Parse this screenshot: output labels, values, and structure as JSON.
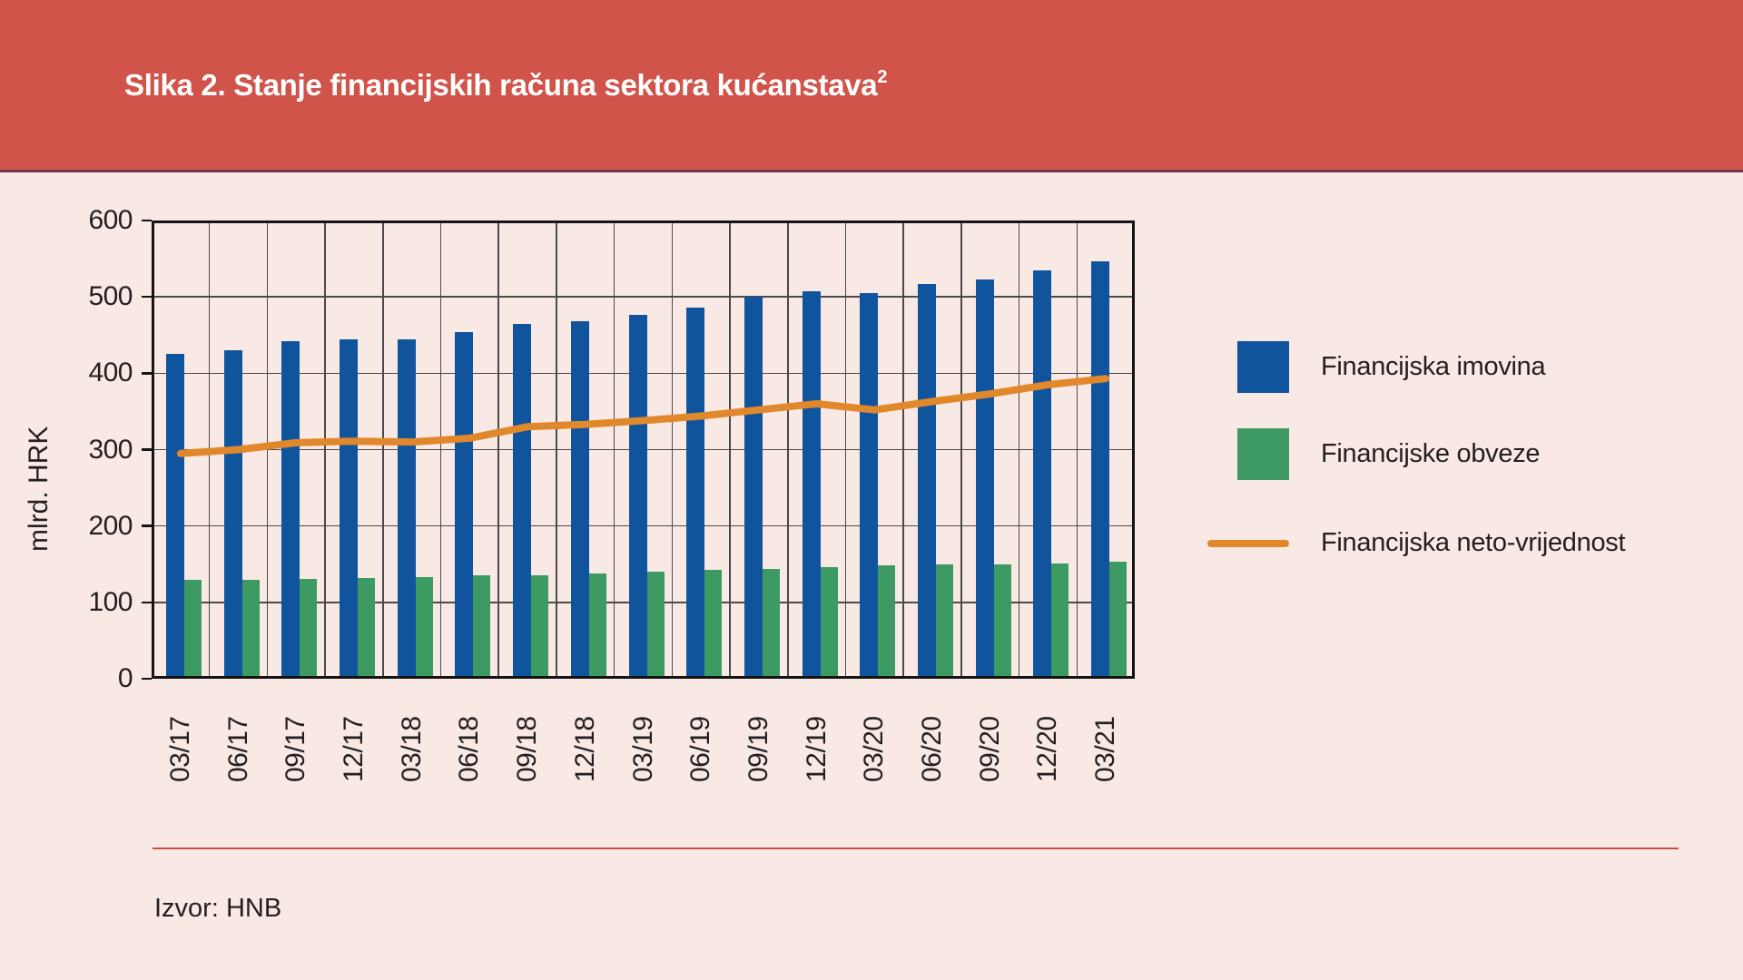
{
  "figure": {
    "title": "Slika 2. Stanje financijskih računa sektora kućanstava",
    "title_superscript": "2"
  },
  "footer": {
    "source": "Izvor: HNB"
  },
  "colors": {
    "header_background": "#d0544a",
    "header_underline": "#753050",
    "header_text": "#ffffff",
    "page_background": "#f9e9e5",
    "divider_line": "#c2504a",
    "text": "#231f20",
    "grid_line": "#4a4a4a",
    "axis_frame": "#141414"
  },
  "chart_data": {
    "type": "bar",
    "title": "Stanje financijskih računa sektora kućanstava",
    "xlabel": "",
    "ylabel": "mlrd. HRK",
    "ylim": [
      0,
      600
    ],
    "ytick_step": 100,
    "grid": true,
    "legend_position": "right",
    "categories": [
      "03/17",
      "06/17",
      "09/17",
      "12/17",
      "03/18",
      "06/18",
      "09/18",
      "12/18",
      "03/19",
      "06/19",
      "09/19",
      "12/19",
      "03/20",
      "06/20",
      "09/20",
      "12/20",
      "03/21"
    ],
    "series": [
      {
        "name": "Financijska imovina",
        "type": "bar",
        "color": "#10549e",
        "values": [
          425,
          430,
          442,
          444,
          444,
          454,
          465,
          468,
          476,
          486,
          500,
          507,
          505,
          517,
          523,
          535,
          547
        ]
      },
      {
        "name": "Financijske obveze",
        "type": "bar",
        "color": "#3d9a63",
        "values": [
          130,
          130,
          131,
          132,
          133,
          135,
          136,
          138,
          140,
          143,
          144,
          146,
          148,
          150,
          150,
          151,
          153
        ]
      },
      {
        "name": "Financijska neto-vrijednost",
        "type": "line",
        "color": "#e0882b",
        "values": [
          295,
          300,
          309,
          311,
          310,
          315,
          330,
          333,
          338,
          344,
          352,
          360,
          352,
          363,
          373,
          385,
          393
        ]
      }
    ]
  }
}
